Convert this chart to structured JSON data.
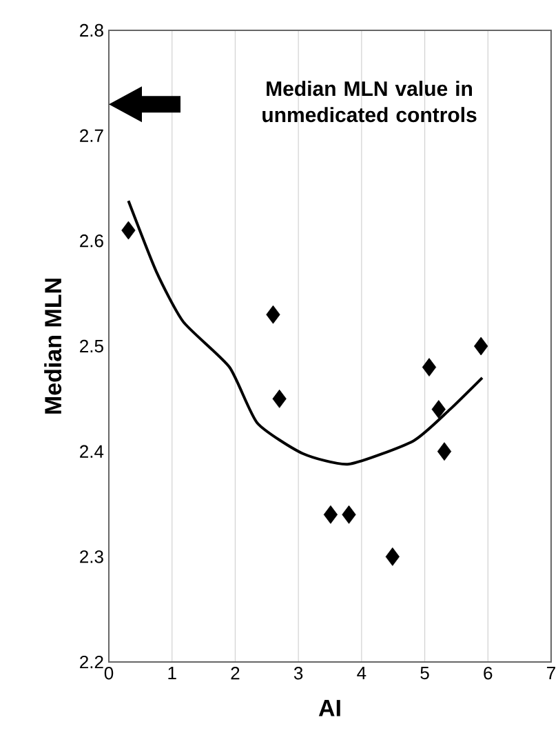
{
  "chart_data": {
    "type": "scatter",
    "xlabel": "AI",
    "ylabel": "Median MLN",
    "xlim": [
      0,
      7
    ],
    "ylim": [
      2.2,
      2.8
    ],
    "xticks": [
      0,
      1,
      2,
      3,
      4,
      5,
      6,
      7
    ],
    "yticks": [
      2.2,
      2.3,
      2.4,
      2.5,
      2.6,
      2.7,
      2.8
    ],
    "grid": "x",
    "annotations": [
      "Median MLN value in unmedicated controls"
    ],
    "series": [
      {
        "marker": "diamond",
        "color": "#000000",
        "x": [
          0.31,
          2.6,
          2.7,
          3.51,
          3.8,
          4.49,
          5.07,
          5.22,
          5.31,
          5.89
        ],
        "values": [
          2.61,
          2.53,
          2.45,
          2.34,
          2.34,
          2.3,
          2.48,
          2.44,
          2.4,
          2.5
        ]
      },
      {
        "type": "line",
        "color": "#000000",
        "x": [
          0.31,
          0.75,
          1.18,
          1.91,
          2.35,
          3.07,
          3.8,
          4.82,
          5.4,
          5.91
        ],
        "values": [
          2.638,
          2.571,
          2.523,
          2.48,
          2.427,
          2.398,
          2.388,
          2.41,
          2.44,
          2.47
        ]
      }
    ]
  }
}
